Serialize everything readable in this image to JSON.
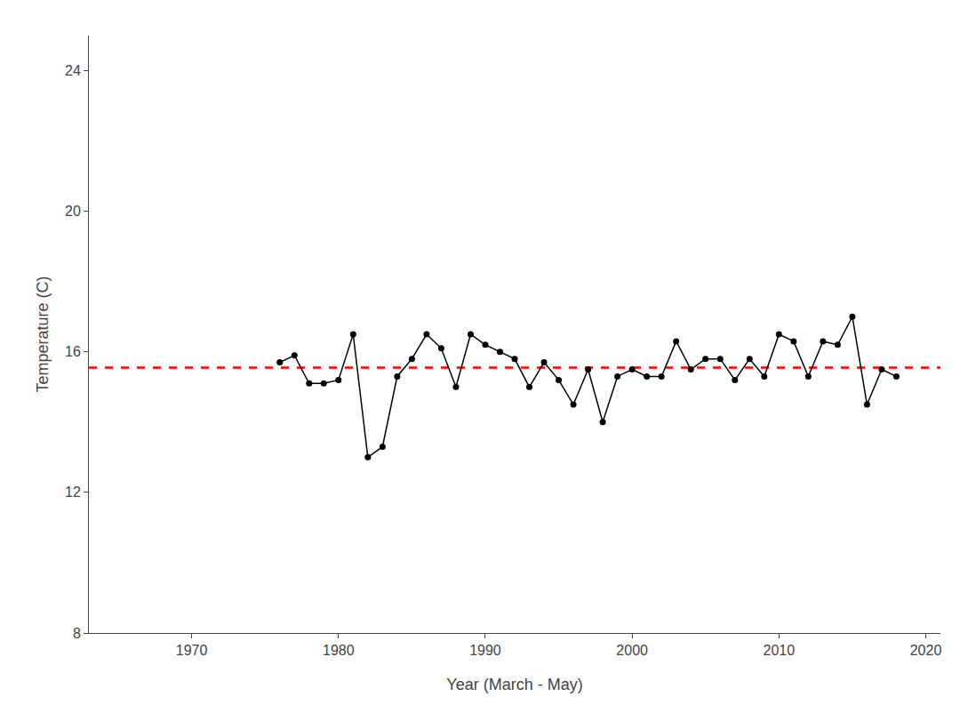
{
  "chart_data": {
    "type": "line",
    "xlabel": "Year (March - May)",
    "ylabel": "Temperature (C)",
    "x": [
      1976,
      1977,
      1978,
      1979,
      1980,
      1981,
      1982,
      1983,
      1984,
      1985,
      1986,
      1987,
      1988,
      1989,
      1990,
      1991,
      1992,
      1993,
      1994,
      1995,
      1996,
      1997,
      1998,
      1999,
      2000,
      2001,
      2002,
      2003,
      2004,
      2005,
      2006,
      2007,
      2008,
      2009,
      2010,
      2011,
      2012,
      2013,
      2014,
      2015,
      2016,
      2017,
      2018
    ],
    "series": [
      {
        "color": "#000000",
        "marker": "circle",
        "line_style": "solid",
        "values": [
          15.7,
          15.9,
          15.1,
          15.1,
          15.2,
          16.5,
          13.0,
          13.3,
          15.3,
          15.8,
          16.5,
          16.1,
          15.0,
          16.5,
          16.2,
          16.0,
          15.8,
          15.0,
          15.7,
          15.2,
          14.5,
          15.5,
          14.0,
          15.3,
          15.5,
          15.3,
          15.3,
          16.3,
          15.5,
          15.8,
          15.8,
          15.2,
          15.8,
          15.3,
          16.5,
          16.3,
          15.3,
          16.3,
          16.2,
          17.0,
          14.5,
          15.5,
          15.3
        ]
      }
    ],
    "mean_line": {
      "y": 15.55,
      "color": "#FF0000",
      "line_style": "dashed"
    },
    "xlim": [
      1963,
      2021
    ],
    "xticks": [
      1970,
      1980,
      1990,
      2000,
      2010,
      2020
    ],
    "ylim": [
      8,
      25
    ],
    "yticks": [
      8,
      12,
      16,
      20,
      24
    ],
    "grid": false
  }
}
